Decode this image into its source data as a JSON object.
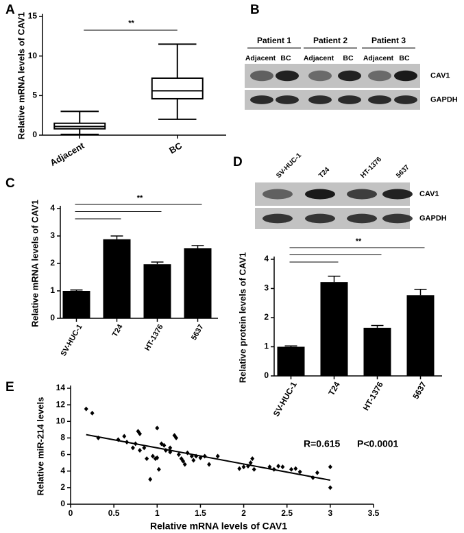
{
  "chart_data": [
    {
      "type": "box",
      "panel": "A",
      "ylabel": "Relative mRNA levels of CAV1",
      "annotation": "**",
      "categories": [
        "Adjacent",
        "BC"
      ],
      "min": [
        0.1,
        2.0
      ],
      "q1": [
        0.8,
        4.6
      ],
      "median": [
        1.1,
        5.6
      ],
      "q3": [
        1.5,
        7.2
      ],
      "max": [
        3.0,
        11.5
      ],
      "ylim": [
        0,
        15
      ],
      "yticks": [
        0,
        5,
        10,
        15
      ],
      "color": "#000000"
    },
    {
      "type": "blot",
      "panel": "B",
      "groups": [
        "Patient 1",
        "Patient 2",
        "Patient 3"
      ],
      "lanes": [
        "Adjacent",
        "BC",
        "Adjacent",
        "BC",
        "Adjacent",
        "BC"
      ],
      "rows": [
        "CAV1",
        "GAPDH"
      ]
    },
    {
      "type": "bar",
      "panel": "C",
      "ylabel": "Relative mRNA levels of CAV1",
      "annotation": "**",
      "categories": [
        "SV-HUC-1",
        "T24",
        "HT-1376",
        "5637"
      ],
      "values": [
        1.0,
        2.88,
        1.97,
        2.55
      ],
      "errors": [
        0.03,
        0.12,
        0.08,
        0.1
      ],
      "ylim": [
        0,
        4
      ],
      "yticks": [
        0,
        1,
        2,
        3,
        4
      ],
      "color": "#000000"
    },
    {
      "type": "blot",
      "panel": "D",
      "lanes": [
        "SV-HUC-1",
        "T24",
        "HT-1376",
        "5637"
      ],
      "rows": [
        "CAV1",
        "GAPDH"
      ]
    },
    {
      "type": "bar",
      "ylabel": "Relative protein levels of CAV1",
      "annotation": "**",
      "categories": [
        "SV-HUC-1",
        "T24",
        "HT-1376",
        "5637"
      ],
      "values": [
        1.0,
        3.22,
        1.65,
        2.77
      ],
      "errors": [
        0.03,
        0.2,
        0.08,
        0.2
      ],
      "ylim": [
        0,
        4
      ],
      "yticks": [
        0,
        1,
        2,
        3,
        4
      ],
      "color": "#000000"
    },
    {
      "type": "scatter",
      "panel": "E",
      "xlabel": "Relative mRNA levels of CAV1",
      "ylabel": "Relative miR-214 levels",
      "annotations": [
        "R=0.615",
        "P<0.0001"
      ],
      "x": [
        0.18,
        0.25,
        0.32,
        0.55,
        0.62,
        0.65,
        0.72,
        0.75,
        0.78,
        0.8,
        0.8,
        0.85,
        0.88,
        0.92,
        0.95,
        0.98,
        1.0,
        1.0,
        1.02,
        1.05,
        1.08,
        1.1,
        1.15,
        1.15,
        1.2,
        1.22,
        1.25,
        1.28,
        1.3,
        1.32,
        1.35,
        1.4,
        1.42,
        1.45,
        1.5,
        1.55,
        1.6,
        1.7,
        1.95,
        2.0,
        2.05,
        2.08,
        2.1,
        2.12,
        2.3,
        2.35,
        2.4,
        2.45,
        2.55,
        2.6,
        2.65,
        2.8,
        2.85,
        3.0,
        3.0
      ],
      "y": [
        11.5,
        11,
        8,
        7.8,
        8.2,
        7.5,
        6.8,
        7.3,
        8.8,
        8.5,
        6.5,
        6.8,
        5.5,
        3,
        5.8,
        5.5,
        9.2,
        5.6,
        4.2,
        7.3,
        7.1,
        6.5,
        6.8,
        6.3,
        8.3,
        8,
        6,
        5.5,
        5.2,
        4.8,
        6.2,
        5.8,
        5.3,
        5.8,
        5.6,
        5.8,
        4.8,
        5.8,
        4.3,
        4.5,
        4.6,
        5,
        5.5,
        4.2,
        4.5,
        4.2,
        4.6,
        4.5,
        4.2,
        4.3,
        3.9,
        3.2,
        3.8,
        4.5,
        2.0
      ],
      "trendline": {
        "x": [
          0.18,
          3.0
        ],
        "y": [
          8.4,
          2.9
        ]
      },
      "xlim": [
        0,
        3.5
      ],
      "xticks": [
        0,
        0.5,
        1,
        1.5,
        2,
        2.5,
        3,
        3.5
      ],
      "ylim": [
        0,
        14
      ],
      "yticks": [
        0,
        2,
        4,
        6,
        8,
        10,
        12,
        14
      ],
      "color": "#000000"
    }
  ]
}
